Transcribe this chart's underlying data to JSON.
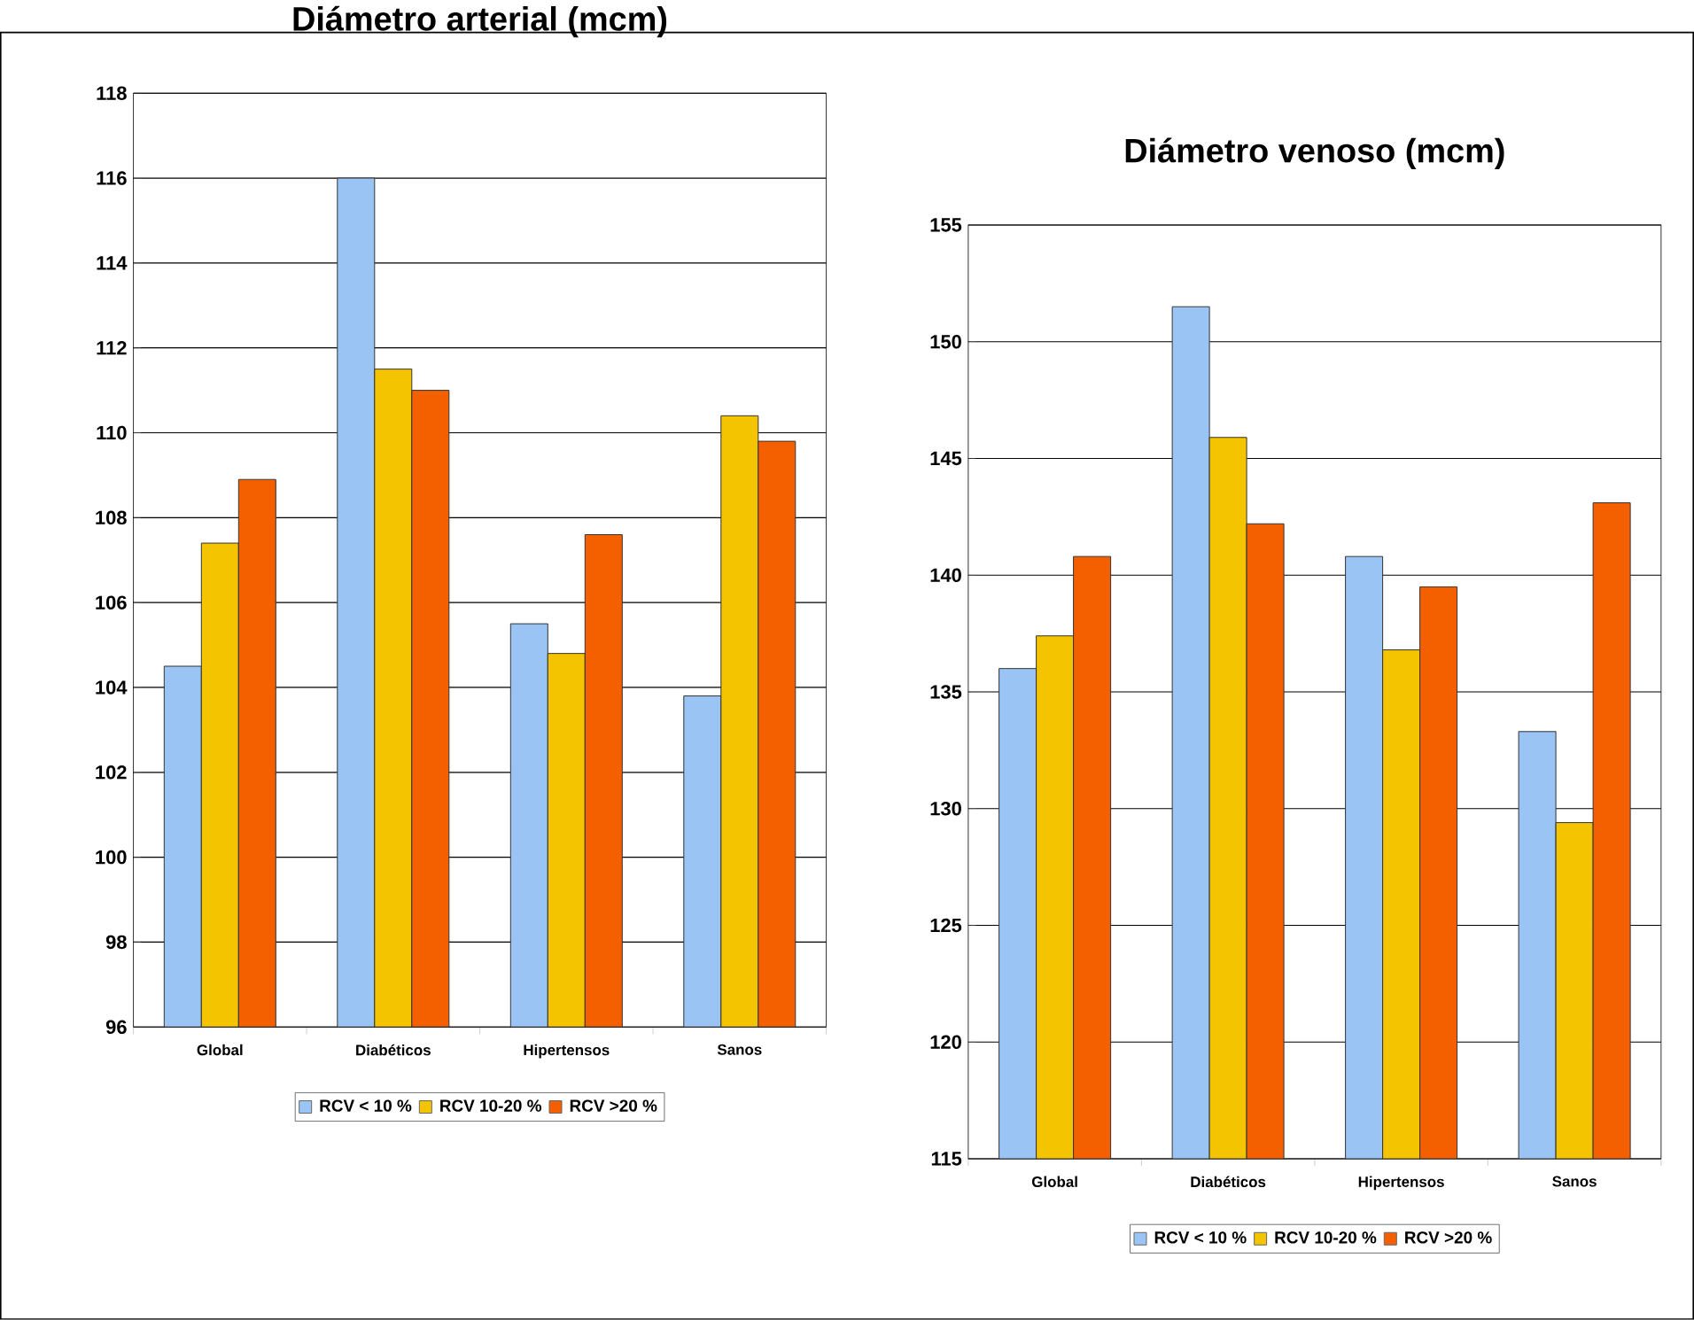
{
  "chart_data": [
    {
      "type": "bar",
      "title": "Diámetro arterial (mcm)",
      "categories": [
        "Global",
        "Diabéticos",
        "Hipertensos",
        "Sanos"
      ],
      "series": [
        {
          "name": "RCV < 10 %",
          "color": "#99c4f4",
          "values": [
            104.5,
            116.0,
            105.5,
            103.8
          ]
        },
        {
          "name": "RCV 10-20 %",
          "color": "#f4c400",
          "values": [
            107.4,
            111.5,
            104.8,
            110.4
          ]
        },
        {
          "name": "RCV >20 %",
          "color": "#f46000",
          "values": [
            108.9,
            111.0,
            107.6,
            109.8
          ]
        }
      ],
      "ylim": [
        96,
        118
      ],
      "yticks": [
        96,
        98,
        100,
        102,
        104,
        106,
        108,
        110,
        112,
        114,
        116,
        118
      ],
      "grid": "y",
      "legend": "bottom"
    },
    {
      "type": "bar",
      "title": "Diámetro venoso (mcm)",
      "categories": [
        "Global",
        "Diabéticos",
        "Hipertensos",
        "Sanos"
      ],
      "series": [
        {
          "name": "RCV < 10 %",
          "color": "#99c4f4",
          "values": [
            136.0,
            151.5,
            140.8,
            133.3
          ]
        },
        {
          "name": "RCV 10-20 %",
          "color": "#f4c400",
          "values": [
            137.4,
            145.9,
            136.8,
            129.4
          ]
        },
        {
          "name": "RCV >20 %",
          "color": "#f46000",
          "values": [
            140.8,
            142.2,
            139.5,
            143.1
          ]
        }
      ],
      "ylim": [
        115,
        155
      ],
      "yticks": [
        115,
        120,
        125,
        130,
        135,
        140,
        145,
        150,
        155
      ],
      "grid": "y",
      "legend": "bottom"
    }
  ]
}
